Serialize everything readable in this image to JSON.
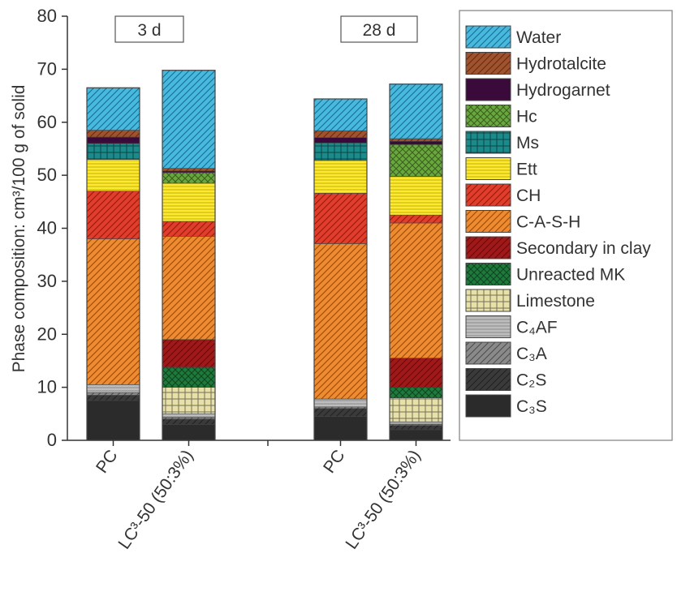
{
  "chart_data": {
    "type": "bar",
    "stacked": true,
    "ylabel": "Phase composition: cm³/100 g of solid",
    "ylim": [
      0,
      80
    ],
    "yticks": [
      "0",
      "10",
      "20",
      "30",
      "40",
      "50",
      "60",
      "70",
      "80"
    ],
    "groups": [
      {
        "title": "3 d",
        "categories": [
          "PC",
          "LC³-50 (50:3%)"
        ]
      },
      {
        "title": "28 d",
        "categories": [
          "PC",
          "LC³-50 (50:3%)"
        ]
      }
    ],
    "bar_labels": [
      "PC",
      "LC³-50 (50:3%)",
      "PC",
      "LC³-50 (50:3%)"
    ],
    "legend": {
      "position": "right",
      "items_top_to_bottom": [
        "Water",
        "Hydrotalcite",
        "Hydrogarnet",
        "Hc",
        "Ms",
        "Ett",
        "CH",
        "C-A-S-H",
        "Secondary in clay",
        "Unreacted MK",
        "Limestone",
        "C₄AF",
        "C₃A",
        "C₂S",
        "C₃S"
      ]
    },
    "series": [
      {
        "name": "C₃S",
        "color": "#2b2b2b",
        "pattern": "solid",
        "values": [
          7.5,
          3.0,
          4.5,
          2.0
        ]
      },
      {
        "name": "C₂S",
        "color": "#3a3a3a",
        "pattern": "diag",
        "values": [
          1.0,
          1.0,
          1.5,
          0.8
        ]
      },
      {
        "name": "C₃A",
        "color": "#8a8a8a",
        "pattern": "diag",
        "values": [
          0.5,
          0.3,
          0.3,
          0.2
        ]
      },
      {
        "name": "C₄AF",
        "color": "#bdbdbd",
        "pattern": "hlines",
        "values": [
          1.5,
          0.7,
          1.5,
          0.5
        ]
      },
      {
        "name": "Limestone",
        "color": "#e7e0a8",
        "pattern": "grid",
        "values": [
          0,
          5.0,
          0,
          4.5
        ]
      },
      {
        "name": "Unreacted MK",
        "color": "#1d7a3a",
        "pattern": "cross",
        "values": [
          0,
          3.8,
          0,
          2.0
        ]
      },
      {
        "name": "Secondary in clay",
        "color": "#a01818",
        "pattern": "diag",
        "values": [
          0,
          5.2,
          0,
          5.5
        ]
      },
      {
        "name": "C-A-S-H",
        "color": "#ef8a2e",
        "pattern": "diag",
        "values": [
          27.5,
          19.5,
          29.3,
          25.5
        ]
      },
      {
        "name": "CH",
        "color": "#e23c2a",
        "pattern": "diag",
        "values": [
          9.0,
          2.8,
          9.5,
          1.5
        ]
      },
      {
        "name": "Ett",
        "color": "#ffea2a",
        "pattern": "hlines",
        "values": [
          6.0,
          7.2,
          6.2,
          7.3
        ]
      },
      {
        "name": "Ms",
        "color": "#1b8a8a",
        "pattern": "grid",
        "values": [
          3.0,
          0,
          3.3,
          0
        ]
      },
      {
        "name": "Hc",
        "color": "#69a83c",
        "pattern": "cross",
        "values": [
          0,
          2.0,
          0,
          6.0
        ]
      },
      {
        "name": "Hydrogarnet",
        "color": "#3a0a3a",
        "pattern": "solid",
        "values": [
          1.2,
          0.3,
          1.0,
          0.6
        ]
      },
      {
        "name": "Hydrotalcite",
        "color": "#a0522d",
        "pattern": "diag",
        "values": [
          1.3,
          0.5,
          1.3,
          0.5
        ]
      },
      {
        "name": "Water",
        "color": "#46b9e0",
        "pattern": "diag",
        "values": [
          8.0,
          18.5,
          6.0,
          10.3
        ]
      }
    ]
  }
}
